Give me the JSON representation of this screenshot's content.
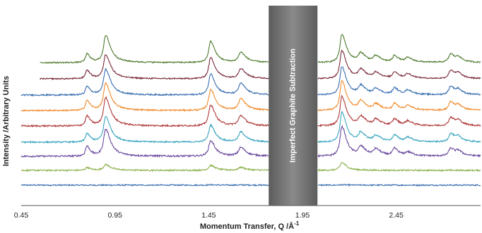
{
  "chart_data": {
    "type": "line",
    "title": "",
    "xlabel": "Momentum Transfer, Q /Å",
    "xlabel_superscript": "-1",
    "ylabel": "Intensity /Arbitrary Units",
    "xlim": [
      0.45,
      2.9
    ],
    "xticks": [
      0.45,
      0.95,
      1.45,
      1.95,
      2.45
    ],
    "tick_labels": [
      "0.45",
      "0.95",
      "1.45",
      "1.95",
      "2.45"
    ],
    "yticks_shown": false,
    "grid": false,
    "legend": "none",
    "excluded_region": {
      "x_range": [
        1.77,
        2.03
      ],
      "label": "Imperfect Graphite Subtraction",
      "color": "#7a7a7a"
    },
    "peaks": [
      {
        "q": 0.8,
        "w": 0.015
      },
      {
        "q": 0.9,
        "w": 0.022
      },
      {
        "q": 1.46,
        "w": 0.02
      },
      {
        "q": 1.62,
        "w": 0.022
      },
      {
        "q": 2.16,
        "w": 0.02
      },
      {
        "q": 2.26,
        "w": 0.022
      },
      {
        "q": 2.34,
        "w": 0.022
      },
      {
        "q": 2.44,
        "w": 0.018
      },
      {
        "q": 2.51,
        "w": 0.022
      },
      {
        "q": 2.74,
        "w": 0.02
      },
      {
        "q": 2.78,
        "w": 0.018
      }
    ],
    "series": [
      {
        "color": "#3a6fb0",
        "offset": 9,
        "start": 0.45,
        "amplitudes": [
          0,
          0,
          0.5,
          0.3,
          0.5,
          0,
          0,
          0,
          0,
          0,
          0
        ],
        "noise": 0.9
      },
      {
        "color": "#8ab04a",
        "offset": 30,
        "start": 0.45,
        "amplitudes": [
          4,
          8,
          7,
          4,
          11,
          0,
          0,
          0,
          0,
          0,
          0
        ],
        "noise": 1.0
      },
      {
        "color": "#6b4a9e",
        "offset": 50,
        "start": 0.45,
        "amplitudes": [
          14,
          38,
          22,
          12,
          42,
          12,
          9,
          10,
          5,
          11,
          6
        ],
        "noise": 1.2
      },
      {
        "color": "#3aa5bf",
        "offset": 70,
        "start": 0.45,
        "amplitudes": [
          12,
          36,
          24,
          14,
          42,
          12,
          8,
          9,
          6,
          12,
          6
        ],
        "noise": 1.0
      },
      {
        "color": "#b03a3a",
        "offset": 93,
        "start": 0.45,
        "amplitudes": [
          14,
          40,
          30,
          14,
          42,
          12,
          8,
          9,
          6,
          12,
          6
        ],
        "noise": 1.1
      },
      {
        "color": "#f08a2c",
        "offset": 115,
        "start": 0.45,
        "amplitudes": [
          14,
          38,
          30,
          16,
          42,
          12,
          8,
          9,
          6,
          12,
          6
        ],
        "noise": 1.0
      },
      {
        "color": "#3a6fb0",
        "offset": 137,
        "start": 0.45,
        "amplitudes": [
          12,
          36,
          30,
          16,
          40,
          12,
          8,
          9,
          6,
          12,
          6
        ],
        "noise": 1.0
      },
      {
        "color": "#7a2a3a",
        "offset": 160,
        "start": 0.55,
        "amplitudes": [
          12,
          34,
          30,
          14,
          40,
          12,
          8,
          9,
          6,
          12,
          6
        ],
        "noise": 0.9
      },
      {
        "color": "#4e7a2e",
        "offset": 183,
        "start": 0.55,
        "amplitudes": [
          12,
          38,
          30,
          14,
          40,
          12,
          8,
          9,
          6,
          12,
          6
        ],
        "noise": 0.9
      }
    ]
  }
}
